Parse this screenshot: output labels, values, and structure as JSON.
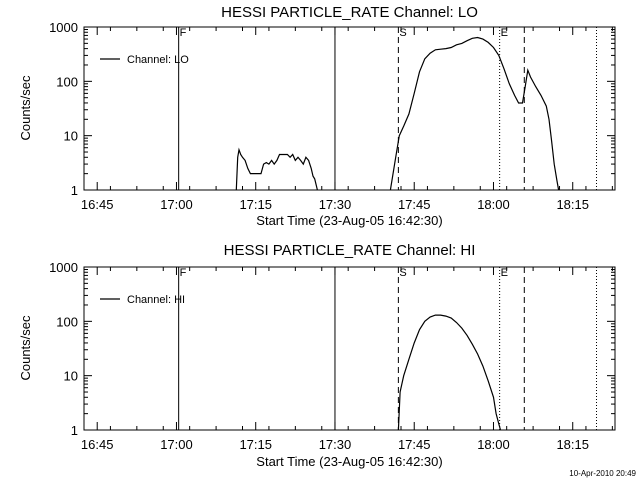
{
  "chart_data": [
    {
      "type": "line",
      "title": "HESSI PARTICLE_RATE Channel: LO",
      "xlabel": "Start Time (23-Aug-05 16:42:30)",
      "ylabel": "Counts/sec",
      "yscale": "log",
      "ylim": [
        1,
        1000
      ],
      "xlim": [
        "16:42:30",
        "18:23:00"
      ],
      "x_ticks": [
        "16:45",
        "17:00",
        "17:15",
        "17:30",
        "17:45",
        "18:00",
        "18:15"
      ],
      "y_ticks": [
        "1",
        "10",
        "100",
        "1000"
      ],
      "legend": "top-left",
      "series": [
        {
          "name": "Channel: LO",
          "segments": [
            [
              [
                "17:11:20",
                1
              ],
              [
                "17:11:35",
                4
              ],
              [
                "17:11:50",
                5.5
              ],
              [
                "17:12:10",
                4.5
              ],
              [
                "17:12:30",
                4
              ],
              [
                "17:13:00",
                3.5
              ],
              [
                "17:13:30",
                2.5
              ],
              [
                "17:14:00",
                2
              ],
              [
                "17:15:00",
                2
              ],
              [
                "17:16:00",
                2
              ],
              [
                "17:16:30",
                3
              ],
              [
                "17:17:00",
                3.2
              ],
              [
                "17:17:30",
                3
              ],
              [
                "17:18:00",
                3.5
              ],
              [
                "17:18:30",
                3
              ],
              [
                "17:19:00",
                3.5
              ],
              [
                "17:19:30",
                4.5
              ],
              [
                "17:20:00",
                4.5
              ],
              [
                "17:21:00",
                4.5
              ],
              [
                "17:21:30",
                4
              ],
              [
                "17:22:00",
                4.5
              ],
              [
                "17:22:30",
                3.5
              ],
              [
                "17:23:00",
                4
              ],
              [
                "17:23:30",
                3.5
              ],
              [
                "17:24:00",
                3
              ],
              [
                "17:24:30",
                4
              ],
              [
                "17:25:00",
                3.5
              ],
              [
                "17:25:30",
                2.5
              ],
              [
                "17:25:50",
                1.8
              ],
              [
                "17:26:10",
                1.6
              ],
              [
                "17:26:40",
                1
              ]
            ],
            [
              [
                "17:40:30",
                1
              ],
              [
                "17:41:30",
                4
              ],
              [
                "17:42:10",
                10
              ],
              [
                "17:43:00",
                15
              ],
              [
                "17:44:00",
                25
              ],
              [
                "17:45:00",
                60
              ],
              [
                "17:46:00",
                150
              ],
              [
                "17:47:00",
                260
              ],
              [
                "17:48:00",
                330
              ],
              [
                "17:49:00",
                380
              ],
              [
                "17:50:00",
                390
              ],
              [
                "17:51:00",
                400
              ],
              [
                "17:52:00",
                420
              ],
              [
                "17:53:00",
                470
              ],
              [
                "17:54:00",
                500
              ],
              [
                "17:55:00",
                560
              ],
              [
                "17:56:00",
                620
              ],
              [
                "17:57:00",
                640
              ],
              [
                "17:58:00",
                600
              ],
              [
                "17:59:00",
                520
              ],
              [
                "18:00:00",
                420
              ],
              [
                "18:01:00",
                300
              ],
              [
                "18:02:00",
                170
              ],
              [
                "18:03:00",
                90
              ],
              [
                "18:04:00",
                55
              ],
              [
                "18:04:45",
                40
              ],
              [
                "18:05:30",
                40
              ],
              [
                "18:06:00",
                80
              ],
              [
                "18:06:30",
                160
              ],
              [
                "18:07:00",
                120
              ],
              [
                "18:08:00",
                80
              ],
              [
                "18:09:00",
                55
              ],
              [
                "18:10:00",
                35
              ],
              [
                "18:10:30",
                20
              ],
              [
                "18:11:00",
                8
              ],
              [
                "18:11:30",
                3
              ],
              [
                "18:12:00",
                1.5
              ],
              [
                "18:12:20",
                1
              ]
            ]
          ]
        }
      ],
      "markers": [
        {
          "label": "F",
          "time": "17:00:25",
          "style": "solid"
        },
        {
          "label": "",
          "time": "17:30:00",
          "style": "solid"
        },
        {
          "label": "S",
          "time": "17:42:00",
          "style": "dashed"
        },
        {
          "label": "E",
          "time": "18:01:10",
          "style": "dotted"
        },
        {
          "label": "",
          "time": "18:05:50",
          "style": "dashed"
        },
        {
          "label": "",
          "time": "18:19:30",
          "style": "dotted"
        }
      ]
    },
    {
      "type": "line",
      "title": "HESSI PARTICLE_RATE Channel: HI",
      "xlabel": "Start Time (23-Aug-05 16:42:30)",
      "ylabel": "Counts/sec",
      "yscale": "log",
      "ylim": [
        1,
        1000
      ],
      "xlim": [
        "16:42:30",
        "18:23:00"
      ],
      "x_ticks": [
        "16:45",
        "17:00",
        "17:15",
        "17:30",
        "17:45",
        "18:00",
        "18:15"
      ],
      "y_ticks": [
        "1",
        "10",
        "100",
        "1000"
      ],
      "legend": "top-left",
      "series": [
        {
          "name": "Channel: HI",
          "segments": [
            [
              [
                "17:42:00",
                1
              ],
              [
                "17:42:20",
                5
              ],
              [
                "17:43:00",
                10
              ],
              [
                "17:44:00",
                20
              ],
              [
                "17:45:00",
                40
              ],
              [
                "17:46:00",
                70
              ],
              [
                "17:47:00",
                100
              ],
              [
                "17:48:00",
                120
              ],
              [
                "17:49:00",
                130
              ],
              [
                "17:50:00",
                130
              ],
              [
                "17:51:00",
                125
              ],
              [
                "17:52:00",
                115
              ],
              [
                "17:53:00",
                95
              ],
              [
                "17:54:00",
                75
              ],
              [
                "17:55:00",
                55
              ],
              [
                "17:56:00",
                38
              ],
              [
                "17:57:00",
                25
              ],
              [
                "17:58:00",
                15
              ],
              [
                "17:59:00",
                8
              ],
              [
                "18:00:00",
                4
              ],
              [
                "18:00:30",
                2
              ],
              [
                "18:01:00",
                1.3
              ],
              [
                "18:01:20",
                1
              ]
            ]
          ]
        }
      ],
      "markers": [
        {
          "label": "F",
          "time": "17:00:25",
          "style": "solid"
        },
        {
          "label": "",
          "time": "17:30:00",
          "style": "solid"
        },
        {
          "label": "S",
          "time": "17:42:00",
          "style": "dashed"
        },
        {
          "label": "E",
          "time": "18:01:10",
          "style": "dotted"
        },
        {
          "label": "",
          "time": "18:05:50",
          "style": "dashed"
        },
        {
          "label": "",
          "time": "18:19:30",
          "style": "dotted"
        }
      ]
    }
  ],
  "footer": {
    "timestamp": "10-Apr-2010 20:49"
  }
}
